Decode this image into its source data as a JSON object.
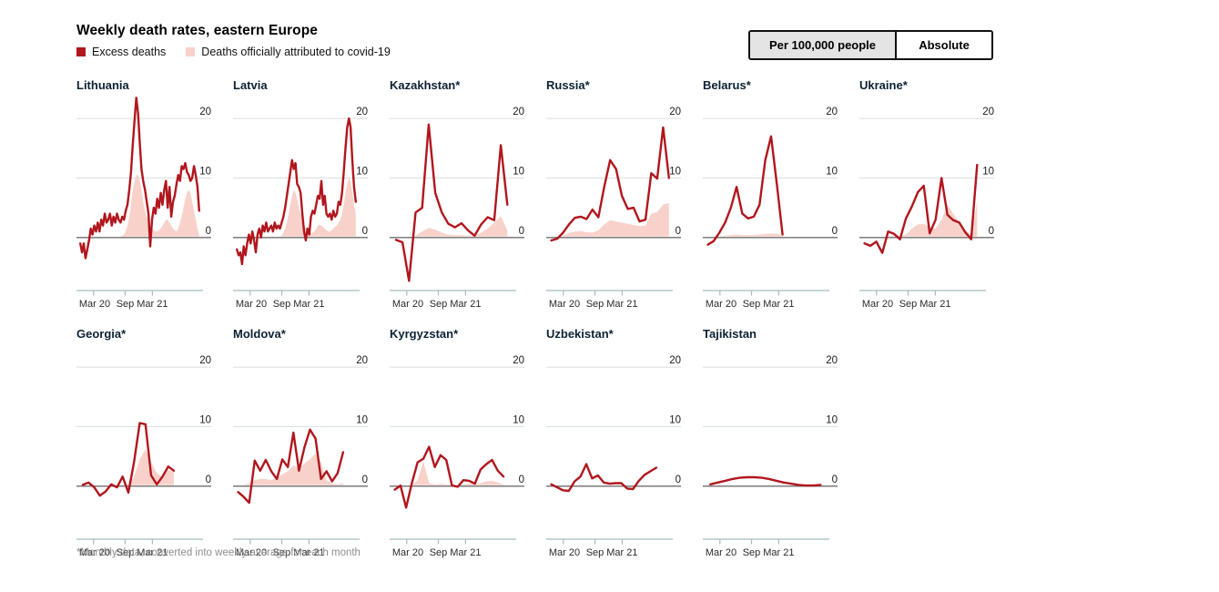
{
  "header": {
    "title": "Weekly death rates, eastern Europe",
    "legend": [
      {
        "label": "Excess deaths",
        "color": "#b0161c"
      },
      {
        "label": "Deaths officially attributed to covid-19",
        "color": "#f8d2ca"
      }
    ],
    "toggle": [
      {
        "label": "Per 100,000 people",
        "active": true
      },
      {
        "label": "Absolute",
        "active": false
      }
    ]
  },
  "footnote": "*Monthly data, converted into weekly average for each month",
  "colors": {
    "line": "#b1161d",
    "area": "#f8d2ca",
    "grid": "#d9dede",
    "zero": "#6f6f6f",
    "axis": "#a8babf",
    "tick_text": "#2b2b2b",
    "ylabel_text": "#1a1a1a"
  },
  "chart_data": {
    "type": "line",
    "title": "Weekly death rates, eastern Europe",
    "unit": "deaths per 100,000 people per week",
    "ylim": [
      -8,
      24
    ],
    "yticks": [
      0,
      10,
      20
    ],
    "grid": true,
    "legend_entries": [
      "Excess deaths",
      "Deaths officially attributed to covid-19"
    ],
    "xticks": [
      {
        "label": "Mar 20",
        "f": 0.135
      },
      {
        "label": "Sep",
        "f": 0.385
      },
      {
        "label": "Mar 21",
        "f": 0.6
      }
    ],
    "countries": [
      {
        "name": "Lithuania",
        "xs": 0.03,
        "xe": 0.97,
        "excess": [
          -1,
          -2.5,
          -1,
          -3.5,
          -2,
          -0.5,
          1.5,
          0.5,
          2,
          1,
          2.5,
          1,
          3,
          2,
          4,
          2.5,
          3,
          4,
          2,
          3.5,
          2.5,
          4,
          3,
          2.5,
          3.5,
          3,
          4.5,
          5.5,
          8,
          11,
          15.5,
          19.5,
          23.5,
          21,
          16,
          11.5,
          9.5,
          8,
          6,
          4,
          -1.5,
          3,
          5,
          4,
          6.5,
          5,
          7.5,
          5.5,
          8,
          9.5,
          5,
          8.5,
          3.5,
          6,
          7,
          9,
          10.5,
          9.5,
          12,
          11.5,
          12.5,
          11,
          10.5,
          9.5,
          10,
          12,
          10.5,
          8.5,
          4.5
        ],
        "covid": [
          0,
          0,
          0,
          0,
          0,
          0,
          0,
          0,
          0,
          0,
          0,
          0,
          0,
          0,
          0,
          0,
          0,
          0,
          0,
          0,
          0,
          0,
          0,
          0,
          0.3,
          0.5,
          1,
          2,
          3.5,
          5.5,
          8,
          9.5,
          10.5,
          10.5,
          9.5,
          8,
          6,
          4.5,
          3.5,
          2.5,
          2,
          1.5,
          1.2,
          1,
          1,
          1.2,
          1.5,
          2,
          2.5,
          3,
          3,
          2.5,
          2,
          1.5,
          1.2,
          1,
          1.5,
          2.5,
          3.5,
          5,
          6.5,
          7.5,
          8,
          7.5,
          6,
          4.5,
          3,
          1.5,
          0.5
        ]
      },
      {
        "name": "Latvia",
        "xs": 0.03,
        "xe": 0.97,
        "excess": [
          -2,
          -3,
          -2.5,
          -4.5,
          -1.5,
          -3,
          -1,
          0.5,
          -1,
          1,
          -0.5,
          -2.5,
          0.5,
          1.5,
          0,
          2,
          1,
          2.5,
          1,
          1.5,
          2,
          1,
          2.5,
          1.5,
          2,
          1.5,
          2.5,
          3.5,
          5,
          7,
          9,
          11,
          13,
          11.5,
          12.5,
          9,
          8.5,
          7.5,
          4,
          1,
          -0.5,
          1.5,
          0.5,
          3.5,
          4.5,
          4,
          5.5,
          7,
          6.5,
          9.5,
          5.5,
          7,
          4,
          3.5,
          4,
          3,
          4.5,
          3.5,
          4,
          6,
          5.5,
          7.5,
          11,
          15,
          18.5,
          20,
          18.5,
          13,
          8.5,
          6
        ],
        "covid": [
          0,
          0,
          0,
          0,
          0,
          0,
          0,
          0,
          0,
          0,
          0,
          0,
          0,
          0,
          0,
          0,
          0,
          0,
          0,
          0,
          0,
          0,
          0,
          0,
          0,
          0,
          0.3,
          0.8,
          1.5,
          2.5,
          4,
          5.5,
          7,
          8,
          7.5,
          6.5,
          5,
          4,
          3,
          2.2,
          1.6,
          1.2,
          1,
          0.8,
          0.8,
          1,
          1.5,
          2,
          2.2,
          2,
          1.8,
          1.5,
          1.2,
          1,
          1,
          1.2,
          1.5,
          1.8,
          2,
          2.5,
          3,
          4,
          5.5,
          7.5,
          9,
          10,
          9.5,
          7.5,
          5.5,
          4
        ]
      },
      {
        "name": "Kazakhstan*",
        "xs": 0.05,
        "xe": 0.93,
        "excess": [
          -0.4,
          -0.8,
          -7.3,
          4.2,
          5.0,
          19.0,
          7.5,
          4.2,
          2.3,
          1.7,
          2.4,
          1.2,
          0.3,
          2.2,
          3.4,
          2.9,
          15.5,
          5.5
        ],
        "covid": [
          0,
          0,
          0,
          0.3,
          1.0,
          1.6,
          1.3,
          0.8,
          0.5,
          0.4,
          0.4,
          0.3,
          0.3,
          0.8,
          1.5,
          2.5,
          3.6,
          1.2
        ]
      },
      {
        "name": "Russia*",
        "xs": 0.04,
        "xe": 0.97,
        "excess": [
          -0.5,
          -0.2,
          0.8,
          2.2,
          3.3,
          3.5,
          3.1,
          4.7,
          3.4,
          8.5,
          13.0,
          11.5,
          7.0,
          4.8,
          5.0,
          2.7,
          3.0,
          10.8,
          9.9,
          18.5,
          10.0
        ],
        "covid": [
          0,
          0.1,
          0.3,
          0.8,
          1.0,
          1.1,
          0.9,
          0.8,
          1.2,
          2.2,
          2.9,
          2.7,
          2.5,
          2.3,
          2.1,
          1.9,
          2.0,
          4.0,
          4.3,
          5.5,
          5.8
        ]
      },
      {
        "name": "Belarus*",
        "xs": 0.04,
        "xe": 0.63,
        "excess": [
          -1.2,
          -0.6,
          0.8,
          2.5,
          5.0,
          8.5,
          4.0,
          3.2,
          3.5,
          5.5,
          13.0,
          17.0,
          9.0,
          0.5
        ],
        "covid": [
          0,
          0,
          0.2,
          0.3,
          0.4,
          0.5,
          0.4,
          0.4,
          0.4,
          0.5,
          0.6,
          0.7,
          0.6,
          0.3
        ]
      },
      {
        "name": "Ukraine*",
        "xs": 0.04,
        "xe": 0.93,
        "excess": [
          -1.0,
          -1.4,
          -0.7,
          -2.6,
          1.0,
          0.6,
          -0.3,
          3.2,
          5.2,
          7.6,
          8.7,
          0.7,
          3.0,
          10.0,
          3.8,
          2.9,
          2.5,
          0.9,
          -0.3,
          12.2
        ],
        "covid": [
          0,
          0,
          0,
          0,
          0.2,
          0.3,
          0.3,
          0.5,
          1.5,
          2.2,
          2.3,
          1.8,
          1.5,
          3.0,
          5.5,
          4.0,
          2.5,
          1.2,
          0.5,
          6.0
        ]
      },
      {
        "name": "Georgia*",
        "xs": 0.05,
        "xe": 0.77,
        "excess": [
          0.2,
          0.6,
          -0.2,
          -1.6,
          -0.9,
          0.3,
          -0.2,
          1.6,
          -1.1,
          4.0,
          10.6,
          10.4,
          1.8,
          0.3,
          1.6,
          3.3,
          2.6
        ],
        "covid": [
          0,
          0,
          0,
          0,
          0,
          0,
          0,
          0.2,
          0.3,
          1.5,
          4.5,
          6.2,
          4.0,
          2.2,
          1.5,
          2.8,
          2.4
        ]
      },
      {
        "name": "Moldova*",
        "xs": 0.04,
        "xe": 0.87,
        "excess": [
          -1.0,
          -1.8,
          -2.8,
          4.3,
          2.6,
          4.4,
          2.5,
          1.2,
          4.5,
          3.2,
          9.0,
          2.6,
          6.5,
          9.5,
          8.0,
          1.2,
          2.5,
          0.8,
          2.2,
          5.7
        ],
        "covid": [
          0,
          0,
          0.5,
          1.0,
          1.2,
          1.2,
          1.0,
          1.5,
          2.0,
          2.5,
          3.5,
          3.0,
          3.8,
          4.5,
          5.5,
          4.0,
          1.0,
          0.5,
          0.3,
          0.5
        ]
      },
      {
        "name": "Kyrgyzstan*",
        "xs": 0.04,
        "xe": 0.9,
        "excess": [
          -0.6,
          0.1,
          -3.6,
          0.5,
          4.0,
          4.6,
          6.6,
          3.2,
          5.2,
          4.4,
          0.1,
          -0.1,
          1.0,
          0.9,
          0.4,
          2.8,
          3.7,
          4.4,
          2.6,
          1.6
        ],
        "covid": [
          0,
          0,
          0,
          0.2,
          1.0,
          4.2,
          0.5,
          0.3,
          0.4,
          0.3,
          0.2,
          0.2,
          0.3,
          0.5,
          0.4,
          0.5,
          0.8,
          0.9,
          0.6,
          0.3
        ]
      },
      {
        "name": "Uzbekistan*",
        "xs": 0.04,
        "xe": 0.87,
        "excess": [
          0.3,
          -0.2,
          -0.7,
          -0.8,
          0.8,
          1.6,
          3.7,
          1.3,
          1.8,
          0.6,
          0.4,
          0.5,
          0.5,
          -0.4,
          -0.5,
          0.9,
          1.9,
          2.5,
          3.1
        ],
        "covid": [
          0,
          0,
          0,
          0.1,
          0.1,
          0.2,
          0.2,
          0.1,
          0.1,
          0.1,
          0.1,
          0.1,
          0.1,
          0,
          0,
          0.1,
          0.1,
          0.1,
          0.1
        ]
      },
      {
        "name": "Tajikistan",
        "xs": 0.06,
        "xe": 0.93,
        "excess": [
          0.3,
          0.6,
          0.9,
          1.2,
          1.4,
          1.5,
          1.5,
          1.4,
          1.2,
          0.9,
          0.6,
          0.4,
          0.2,
          0.1,
          0.1,
          0.2
        ],
        "covid": [
          0,
          0,
          0,
          0,
          0,
          0,
          0,
          0,
          0,
          0,
          0,
          0,
          0,
          0,
          0,
          0
        ]
      }
    ]
  }
}
